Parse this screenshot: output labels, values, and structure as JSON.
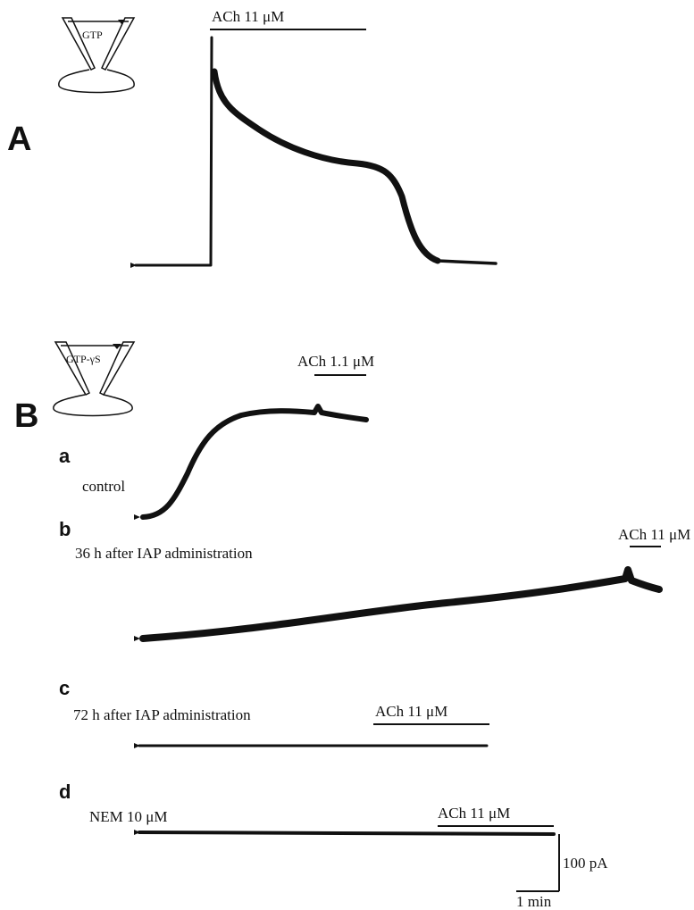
{
  "panel_a": {
    "label": "A",
    "pipette": "GTP",
    "stimulus": "ACh 11 μM"
  },
  "panel_b": {
    "label": "B",
    "pipette": "GTP-γS",
    "traces": [
      {
        "label": "a",
        "condition": "control",
        "stimulus": "ACh 1.1 μM"
      },
      {
        "label": "b",
        "condition": "36 h after IAP administration",
        "stimulus": "ACh 11 μM"
      },
      {
        "label": "c",
        "condition": "72 h after IAP administration",
        "stimulus": "ACh 11 μM"
      },
      {
        "label": "d",
        "condition": "NEM 10 μM",
        "stimulus": "ACh 11 μM"
      }
    ]
  },
  "scale_bar": {
    "current": "100 pA",
    "time": "1 min"
  }
}
